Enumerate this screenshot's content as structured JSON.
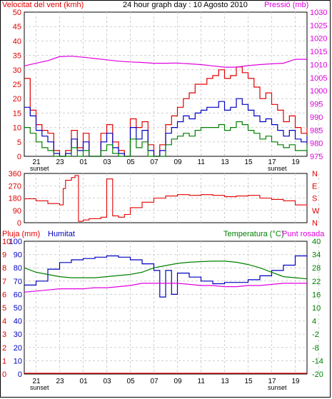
{
  "header": {
    "left_label": "Velocitat del vent (kmh)",
    "title": "24 hour graph day : 10 Agosto 2010",
    "right_label": "Pressió (mb)"
  },
  "footer": {
    "sunset_label": "sunset"
  },
  "colors": {
    "wind": "#e00000",
    "gust": "#e00000",
    "avg_wind": "#0000c0",
    "wind_green": "#008000",
    "pressure": "#e000e0",
    "direction": "#e00000",
    "humidity": "#0000c0",
    "temperature": "#008000",
    "dewpoint": "#e000e0",
    "rain": "#e00000",
    "left_axis": "#e00000",
    "right_axis_top": "#e000e0",
    "blue_axis": "#0000c0",
    "green_axis": "#008000"
  },
  "chart_data": [
    {
      "type": "line",
      "panel": "wind-pressure",
      "x_tick_labels": [
        "21",
        "23",
        "01",
        "03",
        "05",
        "07",
        "09",
        "11",
        "13",
        "15",
        "17",
        "19",
        "21",
        "23"
      ],
      "y_left_label": "Velocitat del vent (kmh)",
      "y_left_ticks": [
        0,
        5,
        10,
        15,
        20,
        25,
        30,
        35,
        40,
        45,
        50
      ],
      "ylim_left": [
        0,
        50
      ],
      "y_right_label": "Pressió (mb)",
      "y_right_ticks": [
        975,
        980,
        985,
        990,
        995,
        1000,
        1005,
        1010,
        1015,
        1020,
        1025,
        1030
      ],
      "ylim_right": [
        975,
        1030
      ],
      "grid": true,
      "series": [
        {
          "role": "gust",
          "axis": "left",
          "color_key": "wind",
          "x": [
            20,
            20.5,
            21,
            21.5,
            22,
            22.5,
            23,
            23.5,
            24,
            24.5,
            25,
            25.5,
            26,
            26.5,
            27,
            27.5,
            28,
            28.5,
            29,
            29.5,
            30,
            30.5,
            31,
            31.5,
            32,
            32.5,
            33,
            33.5,
            34,
            34.5,
            35,
            35.5,
            36,
            36.5,
            37,
            37.5,
            38,
            38.5,
            39,
            39.5,
            40,
            40.5,
            41,
            41.5,
            42,
            42.5,
            43,
            43.5,
            44
          ],
          "values": [
            27,
            16,
            11,
            9,
            8,
            2,
            0,
            2,
            9,
            3,
            8,
            0,
            0,
            8,
            11,
            5,
            2,
            0,
            13,
            10,
            12,
            4,
            0,
            4,
            11,
            14,
            17,
            20,
            22,
            25,
            25,
            27,
            28,
            30,
            27,
            28,
            31,
            29,
            27,
            24,
            20,
            22,
            18,
            16,
            12,
            14,
            10,
            8,
            10
          ]
        },
        {
          "role": "average",
          "axis": "left",
          "color_key": "avg_wind",
          "x": [
            20,
            20.5,
            21,
            21.5,
            22,
            22.5,
            23,
            23.5,
            24,
            24.5,
            25,
            25.5,
            26,
            26.5,
            27,
            27.5,
            28,
            28.5,
            29,
            29.5,
            30,
            30.5,
            31,
            31.5,
            32,
            32.5,
            33,
            33.5,
            34,
            34.5,
            35,
            35.5,
            36,
            36.5,
            37,
            37.5,
            38,
            38.5,
            39,
            39.5,
            40,
            40.5,
            41,
            41.5,
            42,
            42.5,
            43,
            43.5,
            44
          ],
          "values": [
            17,
            14,
            9,
            7,
            5,
            1,
            0,
            1,
            6,
            2,
            5,
            0,
            0,
            5,
            8,
            3,
            1,
            0,
            10,
            6,
            9,
            2,
            0,
            2,
            8,
            10,
            12,
            14,
            13,
            15,
            16,
            17,
            17,
            19,
            16,
            17,
            20,
            18,
            16,
            14,
            12,
            13,
            11,
            9,
            7,
            9,
            6,
            5,
            7
          ]
        },
        {
          "role": "minimum",
          "axis": "left",
          "color_key": "wind_green",
          "x": [
            20,
            20.5,
            21,
            21.5,
            22,
            22.5,
            23,
            23.5,
            24,
            24.5,
            25,
            25.5,
            26,
            26.5,
            27,
            27.5,
            28,
            28.5,
            29,
            29.5,
            30,
            30.5,
            31,
            31.5,
            32,
            32.5,
            33,
            33.5,
            34,
            34.5,
            35,
            35.5,
            36,
            36.5,
            37,
            37.5,
            38,
            38.5,
            39,
            39.5,
            40,
            40.5,
            41,
            41.5,
            42,
            42.5,
            43,
            43.5,
            44
          ],
          "values": [
            10,
            8,
            5,
            3,
            2,
            0,
            0,
            0,
            3,
            0,
            2,
            0,
            0,
            2,
            4,
            1,
            0,
            0,
            6,
            3,
            5,
            0,
            0,
            0,
            4,
            6,
            7,
            8,
            7,
            9,
            10,
            10,
            10,
            11,
            9,
            10,
            12,
            11,
            9,
            8,
            6,
            7,
            5,
            4,
            3,
            4,
            2,
            2,
            4
          ]
        },
        {
          "role": "pressure",
          "axis": "right",
          "color_key": "pressure",
          "x": [
            20,
            21,
            22,
            23,
            24,
            25,
            26,
            27,
            28,
            29,
            30,
            31,
            32,
            33,
            34,
            35,
            36,
            37,
            38,
            39,
            40,
            41,
            42,
            43,
            43.5,
            44
          ],
          "values": [
            1009.5,
            1010.5,
            1011.5,
            1013,
            1013.2,
            1012.8,
            1012.3,
            1011.8,
            1011.3,
            1011,
            1010.8,
            1010.5,
            1010.5,
            1010.6,
            1010.3,
            1010,
            1009.5,
            1009,
            1009,
            1009.6,
            1010,
            1010.3,
            1010.5,
            1012,
            1012,
            1012
          ]
        }
      ]
    },
    {
      "type": "line",
      "panel": "wind-direction",
      "y_left_ticks": [
        0,
        90,
        180,
        270,
        360
      ],
      "ylim": [
        0,
        360
      ],
      "y_right_ticks": [
        "N",
        "W",
        "S",
        "E",
        "N"
      ],
      "grid": true,
      "series": [
        {
          "role": "direction",
          "color_key": "direction",
          "x": [
            20,
            21,
            22,
            23,
            23.3,
            23.5,
            24,
            24.3,
            24.6,
            25,
            25.5,
            26,
            26.5,
            27,
            27.5,
            28,
            28.5,
            29,
            30,
            31,
            32,
            33,
            34,
            35,
            36,
            37,
            38,
            39,
            40,
            41,
            42,
            43,
            44
          ],
          "values": [
            175,
            160,
            140,
            130,
            250,
            310,
            330,
            345,
            10,
            20,
            30,
            30,
            40,
            320,
            50,
            40,
            60,
            110,
            150,
            180,
            195,
            205,
            200,
            205,
            200,
            190,
            195,
            200,
            180,
            170,
            160,
            130,
            120
          ]
        }
      ]
    },
    {
      "type": "line",
      "panel": "rain-humidity-temperature",
      "x_tick_labels": [
        "21",
        "23",
        "01",
        "03",
        "05",
        "07",
        "09",
        "11",
        "13",
        "15",
        "17",
        "19",
        "21",
        "23"
      ],
      "y_rain_label": "Pluja (mm)",
      "y_rain_ticks": [
        0,
        1,
        2,
        3,
        4,
        5,
        6,
        7,
        8,
        9,
        10
      ],
      "y_humidity_label": "Humitat",
      "y_humidity_ticks": [
        0,
        10,
        20,
        30,
        40,
        50,
        60,
        70,
        80,
        90,
        100
      ],
      "ylim_humidity": [
        0,
        100
      ],
      "y_temp_label": "Temperatura (°C)",
      "y_dew_label": "Punt rosada",
      "y_temp_ticks": [
        -20,
        -14,
        -8,
        -2,
        4,
        10,
        16,
        22,
        28,
        34,
        40
      ],
      "ylim_temp": [
        -20,
        40
      ],
      "grid": true,
      "series": [
        {
          "role": "humidity",
          "axis": "humidity",
          "color_key": "humidity",
          "x": [
            20,
            21,
            22,
            23,
            24,
            25,
            26,
            27,
            28,
            29,
            30,
            31,
            31.5,
            32,
            32.5,
            33,
            34,
            35,
            36,
            37,
            38,
            39,
            40,
            41,
            42,
            43,
            44
          ],
          "values": [
            67,
            70,
            79,
            84,
            86,
            87,
            88,
            89,
            88,
            86,
            83,
            78,
            58,
            78,
            60,
            76,
            73,
            70,
            68,
            69,
            69,
            71,
            74,
            78,
            82,
            89,
            88
          ]
        },
        {
          "role": "temperature",
          "axis": "temp",
          "color_key": "temperature",
          "x": [
            20,
            21,
            22,
            23,
            24,
            25,
            26,
            27,
            28,
            29,
            30,
            31,
            32,
            33,
            34,
            35,
            36,
            37,
            38,
            39,
            40,
            41,
            42,
            43,
            44
          ],
          "values": [
            28,
            26,
            25,
            24,
            23.5,
            23.5,
            23.5,
            24,
            24.5,
            25,
            26,
            28,
            29,
            30,
            30.5,
            30.8,
            31,
            31,
            30.5,
            29.5,
            28,
            26,
            24,
            23.5,
            23
          ]
        },
        {
          "role": "dewpoint",
          "axis": "temp",
          "color_key": "dewpoint",
          "x": [
            20,
            21,
            22,
            23,
            24,
            25,
            26,
            27,
            28,
            29,
            30,
            31,
            32,
            33,
            34,
            35,
            36,
            37,
            38,
            39,
            40,
            41,
            42,
            43,
            44
          ],
          "values": [
            17,
            17.5,
            18,
            18.5,
            18.5,
            18.5,
            19,
            19,
            19.5,
            20,
            21,
            21,
            21,
            21,
            20.5,
            20,
            20,
            19.5,
            19.5,
            20,
            20,
            20.5,
            21,
            21,
            21
          ]
        },
        {
          "role": "rain",
          "axis": "rain",
          "color_key": "rain",
          "x": [
            20,
            44
          ],
          "values": [
            0,
            0
          ]
        }
      ]
    }
  ]
}
